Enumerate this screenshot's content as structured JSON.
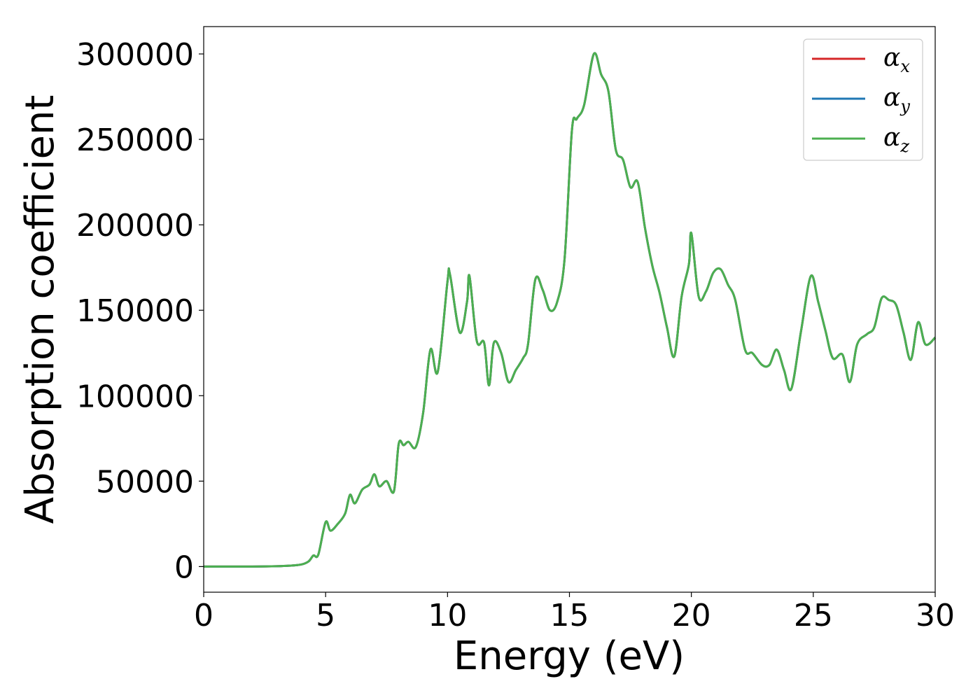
{
  "chart_data": {
    "type": "line",
    "title": "",
    "xlabel": "Energy (eV)",
    "ylabel": "Absorption coefficient",
    "xlim": [
      0,
      30
    ],
    "ylim": [
      -15000,
      316000
    ],
    "xticks": [
      0,
      5,
      10,
      15,
      20,
      25,
      30
    ],
    "yticks": [
      0,
      50000,
      100000,
      150000,
      200000,
      250000,
      300000
    ],
    "xtick_labels": [
      "0",
      "5",
      "10",
      "15",
      "20",
      "25",
      "30"
    ],
    "ytick_labels": [
      "0",
      "50000",
      "100000",
      "150000",
      "200000",
      "250000",
      "300000"
    ],
    "grid": false,
    "legend_position": "top-right",
    "legend": [
      {
        "base": "α",
        "sub": "x",
        "color": "#d62728"
      },
      {
        "base": "α",
        "sub": "y",
        "color": "#1f77b4"
      },
      {
        "base": "α",
        "sub": "z",
        "color": "#4caf50"
      }
    ],
    "x": [
      0,
      1,
      2,
      3,
      3.5,
      4.0,
      4.3,
      4.5,
      4.7,
      5.0,
      5.2,
      5.5,
      5.8,
      6.0,
      6.2,
      6.5,
      6.8,
      7.0,
      7.2,
      7.5,
      7.8,
      8.0,
      8.2,
      8.4,
      8.7,
      9.0,
      9.3,
      9.6,
      10.0,
      10.1,
      10.5,
      10.8,
      10.9,
      11.2,
      11.5,
      11.7,
      11.9,
      12.2,
      12.5,
      12.8,
      13.1,
      13.3,
      13.6,
      13.9,
      14.2,
      14.5,
      14.8,
      15.1,
      15.3,
      15.6,
      16.0,
      16.3,
      16.6,
      16.9,
      17.2,
      17.5,
      17.8,
      18.1,
      18.4,
      18.7,
      19.0,
      19.3,
      19.6,
      19.9,
      20.0,
      20.3,
      20.6,
      20.9,
      21.2,
      21.5,
      21.8,
      22.2,
      22.5,
      22.9,
      23.2,
      23.5,
      23.8,
      24.1,
      24.5,
      24.9,
      25.2,
      25.5,
      25.8,
      26.2,
      26.5,
      26.8,
      27.2,
      27.5,
      27.8,
      28.1,
      28.4,
      28.7,
      29.0,
      29.3,
      29.6,
      30.0
    ],
    "series": [
      {
        "name": "α_x",
        "color": "#d62728",
        "values": [
          0,
          0,
          0,
          200,
          500,
          1200,
          3000,
          6500,
          7000,
          26000,
          21000,
          25000,
          31000,
          42000,
          37000,
          45000,
          48000,
          54000,
          47000,
          50000,
          44000,
          72000,
          71000,
          73000,
          70000,
          90000,
          127000,
          114000,
          167000,
          171000,
          137000,
          155000,
          170000,
          132000,
          131000,
          106000,
          131000,
          125000,
          108000,
          115000,
          122000,
          130000,
          168000,
          162000,
          150000,
          155000,
          180000,
          255000,
          262000,
          270000,
          300000,
          288000,
          278000,
          244000,
          238000,
          222000,
          225000,
          198000,
          176000,
          160000,
          140000,
          123000,
          158000,
          177000,
          195000,
          158000,
          161000,
          172000,
          174000,
          165000,
          156000,
          127000,
          125000,
          118000,
          118000,
          127000,
          115000,
          104000,
          138000,
          170000,
          155000,
          138000,
          122000,
          124000,
          108000,
          130000,
          136000,
          140000,
          157000,
          156000,
          153000,
          137000,
          121000,
          143000,
          130000,
          134000
        ]
      },
      {
        "name": "α_y",
        "color": "#1f77b4",
        "values": [
          0,
          0,
          0,
          200,
          500,
          1200,
          3000,
          6500,
          7000,
          26000,
          21000,
          25000,
          31000,
          42000,
          37000,
          45000,
          48000,
          54000,
          47000,
          50000,
          44000,
          72000,
          71000,
          73000,
          70000,
          90000,
          127000,
          114000,
          167000,
          171000,
          137000,
          155000,
          170000,
          132000,
          131000,
          106000,
          131000,
          125000,
          108000,
          115000,
          122000,
          130000,
          168000,
          162000,
          150000,
          155000,
          180000,
          255000,
          262000,
          270000,
          300000,
          288000,
          278000,
          244000,
          238000,
          222000,
          225000,
          198000,
          176000,
          160000,
          140000,
          123000,
          158000,
          177000,
          195000,
          158000,
          161000,
          172000,
          174000,
          165000,
          156000,
          127000,
          125000,
          118000,
          118000,
          127000,
          115000,
          104000,
          138000,
          170000,
          155000,
          138000,
          122000,
          124000,
          108000,
          130000,
          136000,
          140000,
          157000,
          156000,
          153000,
          137000,
          121000,
          143000,
          130000,
          134000
        ]
      },
      {
        "name": "α_z",
        "color": "#4caf50",
        "values": [
          0,
          0,
          0,
          200,
          500,
          1200,
          3000,
          6500,
          7000,
          26000,
          21000,
          25000,
          31000,
          42000,
          37000,
          45000,
          48000,
          54000,
          47000,
          50000,
          44000,
          72000,
          71000,
          73000,
          70000,
          90000,
          127000,
          114000,
          167000,
          171000,
          137000,
          155000,
          170000,
          132000,
          131000,
          106000,
          131000,
          125000,
          108000,
          115000,
          122000,
          130000,
          168000,
          162000,
          150000,
          155000,
          180000,
          255000,
          262000,
          270000,
          300000,
          288000,
          278000,
          244000,
          238000,
          222000,
          225000,
          198000,
          176000,
          160000,
          140000,
          123000,
          158000,
          177000,
          195000,
          158000,
          161000,
          172000,
          174000,
          165000,
          156000,
          127000,
          125000,
          118000,
          118000,
          127000,
          115000,
          104000,
          138000,
          170000,
          155000,
          138000,
          122000,
          124000,
          108000,
          130000,
          136000,
          140000,
          157000,
          156000,
          153000,
          137000,
          121000,
          143000,
          130000,
          134000
        ]
      }
    ]
  }
}
